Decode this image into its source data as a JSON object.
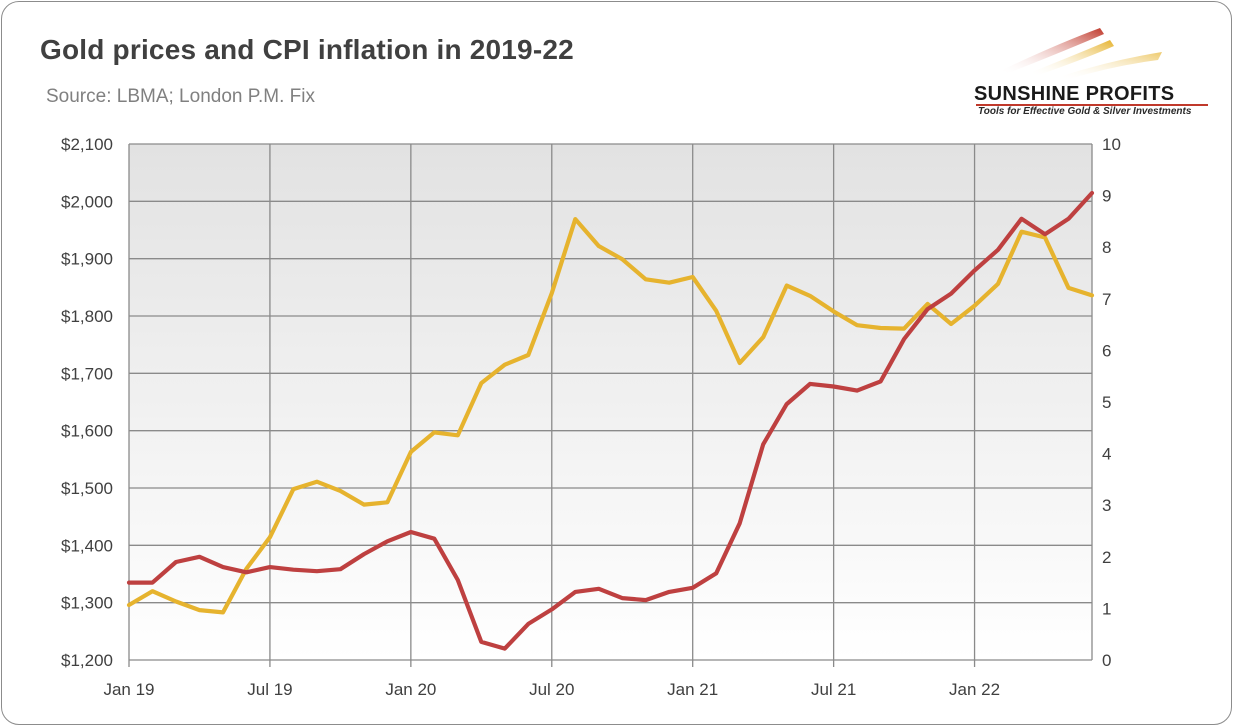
{
  "title": "Gold prices and CPI inflation in 2019-22",
  "subtitle": "Source: LBMA; London P.M. Fix",
  "logo": {
    "name": "SUNSHINE PROFITS",
    "tagline": "Tools for Effective Gold & Silver Investments"
  },
  "colors": {
    "gold": "#E6B32E",
    "cpi": "#BE4040",
    "plot_bg_top": "#e2e2e2",
    "plot_bg_bottom": "#ffffff",
    "grid": "#8a8a8a"
  },
  "chart_data": {
    "type": "line",
    "x": [
      "2019-01",
      "2019-02",
      "2019-03",
      "2019-04",
      "2019-05",
      "2019-06",
      "2019-07",
      "2019-08",
      "2019-09",
      "2019-10",
      "2019-11",
      "2019-12",
      "2020-01",
      "2020-02",
      "2020-03",
      "2020-04",
      "2020-05",
      "2020-06",
      "2020-07",
      "2020-08",
      "2020-09",
      "2020-10",
      "2020-11",
      "2020-12",
      "2021-01",
      "2021-02",
      "2021-03",
      "2021-04",
      "2021-05",
      "2021-06",
      "2021-07",
      "2021-08",
      "2021-09",
      "2021-10",
      "2021-11",
      "2021-12",
      "2022-01",
      "2022-02",
      "2022-03",
      "2022-04",
      "2022-05",
      "2022-06"
    ],
    "x_tick_labels": [
      "Jan 19",
      "Jul 19",
      "Jan 20",
      "Jul 20",
      "Jan 21",
      "Jul 21",
      "Jan 22"
    ],
    "x_tick_months": [
      "2019-01",
      "2019-07",
      "2020-01",
      "2020-07",
      "2021-01",
      "2021-07",
      "2022-01"
    ],
    "y_left": {
      "range": [
        1200,
        2100
      ],
      "tick_labels": [
        "$1,200",
        "$1,300",
        "$1,400",
        "$1,500",
        "$1,600",
        "$1,700",
        "$1,800",
        "$1,900",
        "$2,000",
        "$2,100"
      ]
    },
    "y_right": {
      "range": [
        0,
        10
      ],
      "tick_labels": [
        "0",
        "1",
        "2",
        "3",
        "4",
        "5",
        "6",
        "7",
        "8",
        "9",
        "10"
      ]
    },
    "series": [
      {
        "key": "gold",
        "axis": "left",
        "color": "#E6B32E",
        "values": [
          1296,
          1320,
          1302,
          1287,
          1283,
          1359,
          1414,
          1498,
          1511,
          1495,
          1471,
          1475,
          1563,
          1597,
          1592,
          1683,
          1715,
          1732,
          1840,
          1969,
          1922,
          1899,
          1864,
          1858,
          1868,
          1809,
          1718,
          1763,
          1853,
          1835,
          1808,
          1784,
          1779,
          1778,
          1821,
          1786,
          1818,
          1856,
          1947,
          1937,
          1849,
          1836
        ]
      },
      {
        "key": "cpi",
        "axis": "right",
        "color": "#BE4040",
        "values": [
          1.5,
          1.5,
          1.9,
          2.0,
          1.8,
          1.7,
          1.8,
          1.75,
          1.72,
          1.76,
          2.05,
          2.3,
          2.48,
          2.35,
          1.55,
          0.35,
          0.22,
          0.7,
          0.98,
          1.32,
          1.38,
          1.2,
          1.16,
          1.32,
          1.4,
          1.68,
          2.65,
          4.18,
          4.96,
          5.35,
          5.3,
          5.22,
          5.4,
          6.22,
          6.8,
          7.1,
          7.55,
          7.95,
          8.55,
          8.25,
          8.55,
          9.05
        ]
      }
    ]
  }
}
